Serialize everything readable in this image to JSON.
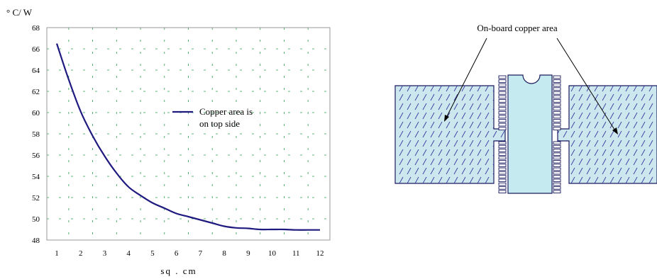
{
  "chart_data": {
    "type": "line",
    "ylabel": "° C/ W",
    "xlabel": "sq . cm",
    "xlim": [
      1,
      12
    ],
    "ylim": [
      48,
      68
    ],
    "x_ticks": [
      "1",
      "2",
      "3",
      "4",
      "5",
      "6",
      "7",
      "8",
      "9",
      "10",
      "11",
      "12"
    ],
    "y_ticks": [
      "48",
      "50",
      "52",
      "54",
      "56",
      "58",
      "60",
      "62",
      "64",
      "66",
      "68"
    ],
    "grid": true,
    "legend_position": "center-right",
    "series": [
      {
        "name": "Copper area is on top side",
        "color": "#1f1a80",
        "x": [
          1,
          1.5,
          2,
          2.5,
          3,
          3.5,
          4,
          4.5,
          5,
          5.5,
          6,
          6.5,
          7,
          7.5,
          8,
          8.5,
          9,
          9.5,
          10,
          10.5,
          11,
          11.5,
          12
        ],
        "y": [
          66.5,
          63.1,
          60.1,
          57.8,
          55.9,
          54.3,
          53.0,
          52.2,
          51.5,
          51.0,
          50.5,
          50.2,
          49.9,
          49.6,
          49.3,
          49.15,
          49.1,
          49.0,
          49.0,
          49.0,
          48.95,
          48.95,
          48.95
        ]
      }
    ]
  },
  "diagram": {
    "label": "On-board copper area",
    "board_fill": "#cce8ee",
    "chip_fill": "#c5eaef",
    "outline_color": "#1a1a5e"
  }
}
